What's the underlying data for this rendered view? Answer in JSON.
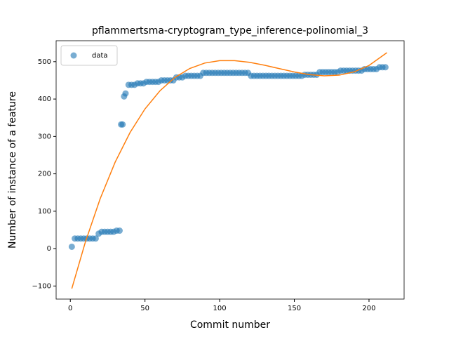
{
  "chart_data": {
    "type": "scatter",
    "title": "pflammertsma-cryptogram_type_inference-polinomial_3",
    "x_label": "Commit number",
    "y_label": "Number of instance of a feature",
    "xlim": [
      -9.5,
      223.5
    ],
    "ylim": [
      -135,
      556
    ],
    "xticks": [
      0,
      50,
      100,
      150,
      200
    ],
    "yticks": [
      {
        "value": -100,
        "label": "−100"
      },
      0,
      100,
      200,
      300,
      400,
      500
    ],
    "legend": "upper left",
    "series": [
      {
        "name": "data",
        "color": "#1f77b4",
        "kind": "points",
        "x": [
          1,
          3,
          5,
          7,
          9,
          11,
          13,
          15,
          17,
          19,
          21,
          23,
          25,
          27,
          29,
          31,
          33,
          34,
          35,
          36,
          37,
          39,
          41,
          43,
          45,
          47,
          49,
          51,
          53,
          55,
          57,
          59,
          61,
          63,
          65,
          67,
          69,
          71,
          73,
          75,
          77,
          79,
          81,
          83,
          85,
          87,
          89,
          91,
          93,
          95,
          97,
          99,
          101,
          103,
          105,
          107,
          109,
          111,
          113,
          115,
          117,
          119,
          121,
          123,
          125,
          127,
          129,
          131,
          133,
          135,
          137,
          139,
          141,
          143,
          145,
          147,
          149,
          151,
          153,
          155,
          157,
          159,
          161,
          163,
          165,
          167,
          169,
          171,
          173,
          175,
          177,
          179,
          181,
          183,
          185,
          187,
          189,
          191,
          193,
          195,
          197,
          199,
          201,
          203,
          205,
          207,
          209,
          211
        ],
        "values": [
          5,
          27,
          27,
          27,
          27,
          27,
          27,
          27,
          27,
          40,
          45,
          45,
          45,
          45,
          45,
          48,
          48,
          332,
          332,
          407,
          415,
          438,
          438,
          438,
          442,
          442,
          442,
          446,
          446,
          446,
          446,
          446,
          450,
          450,
          450,
          450,
          450,
          458,
          458,
          458,
          462,
          462,
          462,
          462,
          462,
          462,
          470,
          470,
          470,
          470,
          470,
          470,
          470,
          470,
          470,
          470,
          470,
          470,
          470,
          470,
          470,
          470,
          462,
          462,
          462,
          462,
          462,
          462,
          462,
          462,
          462,
          462,
          462,
          462,
          462,
          462,
          462,
          462,
          462,
          462,
          465,
          465,
          465,
          465,
          465,
          472,
          472,
          472,
          472,
          472,
          472,
          472,
          476,
          476,
          476,
          476,
          476,
          476,
          476,
          476,
          480,
          480,
          480,
          480,
          480,
          485,
          485,
          485
        ]
      },
      {
        "color": "#ff7f0e",
        "kind": "line",
        "x": [
          1,
          10,
          20,
          30,
          40,
          50,
          60,
          70,
          80,
          90,
          100,
          110,
          120,
          130,
          140,
          150,
          160,
          170,
          180,
          190,
          200,
          212
        ],
        "values": [
          -107,
          16.5,
          133.6,
          231,
          310.5,
          373.6,
          422,
          457.7,
          481.8,
          496.3,
          502.7,
          502.7,
          498.2,
          490.5,
          481.3,
          472.5,
          465.5,
          462.1,
          463.9,
          472.6,
          489.8,
          524
        ]
      }
    ]
  }
}
